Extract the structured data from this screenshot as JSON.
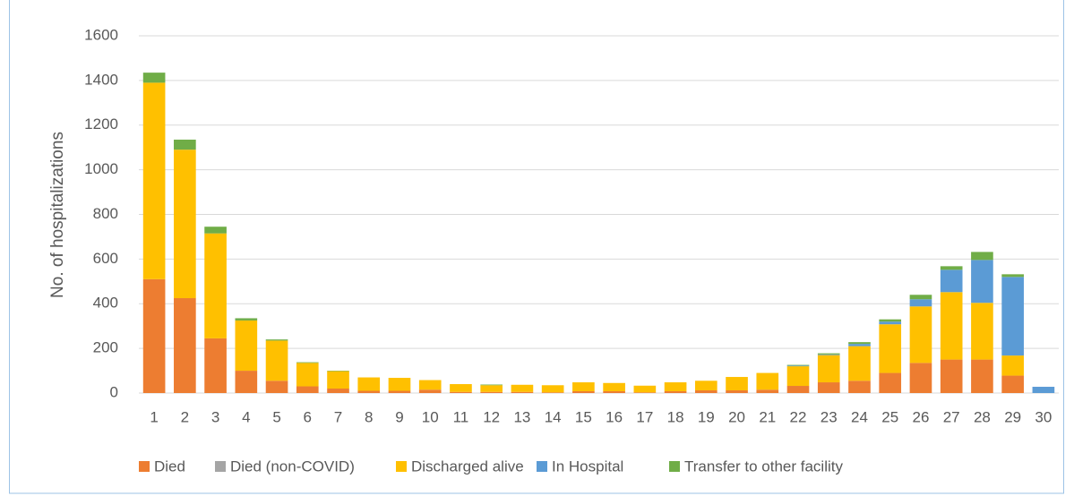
{
  "chart_data": {
    "type": "stacked_bar",
    "y_label": "No. of hospitalizations",
    "categories": [
      "1",
      "2",
      "3",
      "4",
      "5",
      "6",
      "7",
      "8",
      "9",
      "10",
      "11",
      "12",
      "13",
      "14",
      "15",
      "16",
      "17",
      "18",
      "19",
      "20",
      "21",
      "22",
      "23",
      "24",
      "25",
      "26",
      "27",
      "28",
      "29",
      "30"
    ],
    "series": [
      {
        "name": "Died",
        "color": "#ed7d31",
        "values": [
          510,
          425,
          245,
          100,
          55,
          30,
          20,
          10,
          10,
          15,
          5,
          5,
          5,
          3,
          8,
          8,
          3,
          8,
          12,
          12,
          15,
          32,
          48,
          55,
          90,
          135,
          150,
          150,
          78,
          0
        ]
      },
      {
        "name": "Died (non-COVID)",
        "color": "#a5a5a5",
        "values": [
          0,
          0,
          0,
          0,
          0,
          0,
          0,
          0,
          0,
          0,
          0,
          0,
          0,
          0,
          0,
          0,
          0,
          0,
          0,
          0,
          0,
          0,
          0,
          0,
          0,
          0,
          0,
          0,
          0,
          0
        ]
      },
      {
        "name": "Discharged alive",
        "color": "#ffc000",
        "values": [
          880,
          665,
          470,
          225,
          180,
          105,
          78,
          60,
          58,
          43,
          35,
          30,
          32,
          32,
          40,
          37,
          30,
          40,
          43,
          60,
          75,
          88,
          122,
          155,
          218,
          253,
          302,
          254,
          90,
          0
        ]
      },
      {
        "name": "In Hospital",
        "color": "#5b9bd5",
        "values": [
          0,
          0,
          0,
          0,
          0,
          0,
          0,
          0,
          0,
          0,
          0,
          0,
          0,
          0,
          0,
          0,
          0,
          0,
          0,
          0,
          0,
          3,
          3,
          10,
          12,
          32,
          100,
          192,
          352,
          28
        ]
      },
      {
        "name": "Transfer to other facility",
        "color": "#70ad47",
        "values": [
          45,
          45,
          30,
          10,
          5,
          3,
          2,
          0,
          0,
          0,
          0,
          3,
          0,
          0,
          0,
          0,
          0,
          0,
          0,
          0,
          0,
          3,
          5,
          8,
          10,
          20,
          16,
          36,
          12,
          0
        ]
      }
    ],
    "ylim": [
      0,
      1600
    ],
    "yticks": [
      0,
      200,
      400,
      600,
      800,
      1000,
      1200,
      1400,
      1600
    ],
    "grid": true,
    "legend": "bottom"
  }
}
